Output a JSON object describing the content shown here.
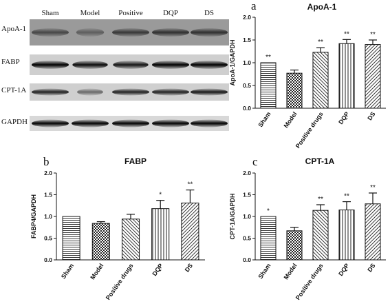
{
  "blot": {
    "lanes": [
      "Sham",
      "Model",
      "Positive",
      "DQP",
      "DS"
    ],
    "rows": [
      "ApoA-1",
      "FABP",
      "CPT-1A",
      "GAPDH"
    ]
  },
  "chart_data": [
    {
      "panel": "a",
      "type": "bar",
      "title": "ApoA-1",
      "ylabel": "ApoA-1/GAPDH",
      "categories": [
        "Sham",
        "Model",
        "Positive drugs",
        "DQP",
        "DS"
      ],
      "values": [
        1.0,
        0.77,
        1.23,
        1.42,
        1.4
      ],
      "errors": [
        0.0,
        0.07,
        0.1,
        0.09,
        0.1
      ],
      "significance": [
        "**",
        "",
        "**",
        "**",
        "**"
      ],
      "ylim": [
        0,
        2.0
      ],
      "yticks": [
        "0.0",
        "0.5",
        "1.0",
        "1.5",
        "2.0"
      ]
    },
    {
      "panel": "b",
      "type": "bar",
      "title": "FABP",
      "ylabel": "FABP4/GAPDH",
      "categories": [
        "Sham",
        "Model",
        "Positive drugs",
        "DQP",
        "DS"
      ],
      "values": [
        1.0,
        0.84,
        0.94,
        1.18,
        1.31
      ],
      "errors": [
        0.0,
        0.04,
        0.11,
        0.19,
        0.3
      ],
      "significance": [
        "",
        "",
        "",
        "*",
        "**"
      ],
      "ylim": [
        0,
        2.0
      ],
      "yticks": [
        "0.0",
        "0.5",
        "1.0",
        "1.5",
        "2.0"
      ]
    },
    {
      "panel": "c",
      "type": "bar",
      "title": "CPT-1A",
      "ylabel": "CPT-1A/GAPDH",
      "categories": [
        "Sham",
        "Model",
        "Positive drugs",
        "DQP",
        "DS"
      ],
      "values": [
        1.0,
        0.67,
        1.14,
        1.15,
        1.29
      ],
      "errors": [
        0.0,
        0.08,
        0.13,
        0.19,
        0.25
      ],
      "significance": [
        "*",
        "",
        "**",
        "**",
        "**"
      ],
      "ylim": [
        0,
        2.0
      ],
      "yticks": [
        "0.0",
        "0.5",
        "1.0",
        "1.5",
        "2.0"
      ]
    }
  ]
}
